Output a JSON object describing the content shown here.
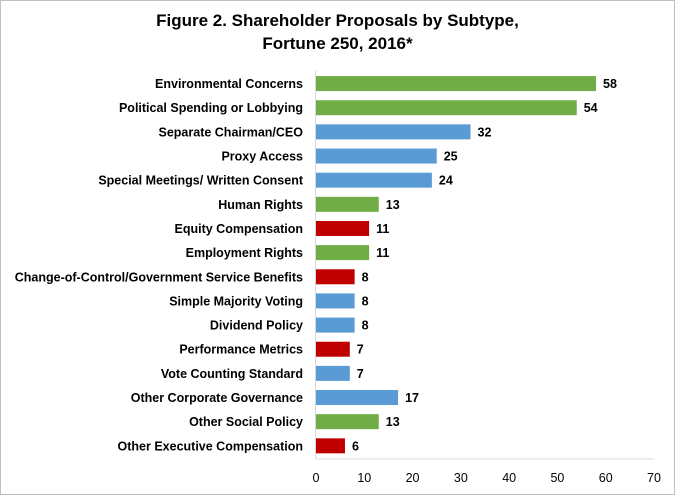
{
  "chart_data": {
    "type": "bar",
    "orientation": "horizontal",
    "title_line1": "Figure 2. Shareholder Proposals by Subtype,",
    "title_line2": "Fortune 250, 2016*",
    "xlabel": "",
    "ylabel": "",
    "xlim": [
      0,
      70
    ],
    "xticks": [
      "0",
      "10",
      "20",
      "30",
      "40",
      "50",
      "60",
      "70"
    ],
    "grid": false,
    "legend": "none",
    "categories": [
      "Environmental Concerns",
      "Political Spending or Lobbying",
      "Separate Chairman/CEO",
      "Proxy Access",
      "Special Meetings/ Written Consent",
      "Human Rights",
      "Equity Compensation",
      "Employment Rights",
      "Change-of-Control/Government Service Benefits",
      "Simple Majority Voting",
      "Dividend Policy",
      "Performance Metrics",
      "Vote Counting Standard",
      "Other Corporate Governance",
      "Other Social Policy",
      "Other Executive Compensation"
    ],
    "values": [
      58,
      54,
      32,
      25,
      24,
      13,
      11,
      11,
      8,
      8,
      8,
      7,
      7,
      17,
      13,
      6
    ],
    "value_labels": [
      "58",
      "54",
      "32",
      "25",
      "24",
      "13",
      "11",
      "11",
      "8",
      "8",
      "8",
      "7",
      "7",
      "17",
      "13",
      "6"
    ],
    "bar_colors": [
      "#70ad47",
      "#70ad47",
      "#5b9bd5",
      "#5b9bd5",
      "#5b9bd5",
      "#70ad47",
      "#c00000",
      "#70ad47",
      "#c00000",
      "#5b9bd5",
      "#5b9bd5",
      "#c00000",
      "#5b9bd5",
      "#5b9bd5",
      "#70ad47",
      "#c00000"
    ]
  }
}
